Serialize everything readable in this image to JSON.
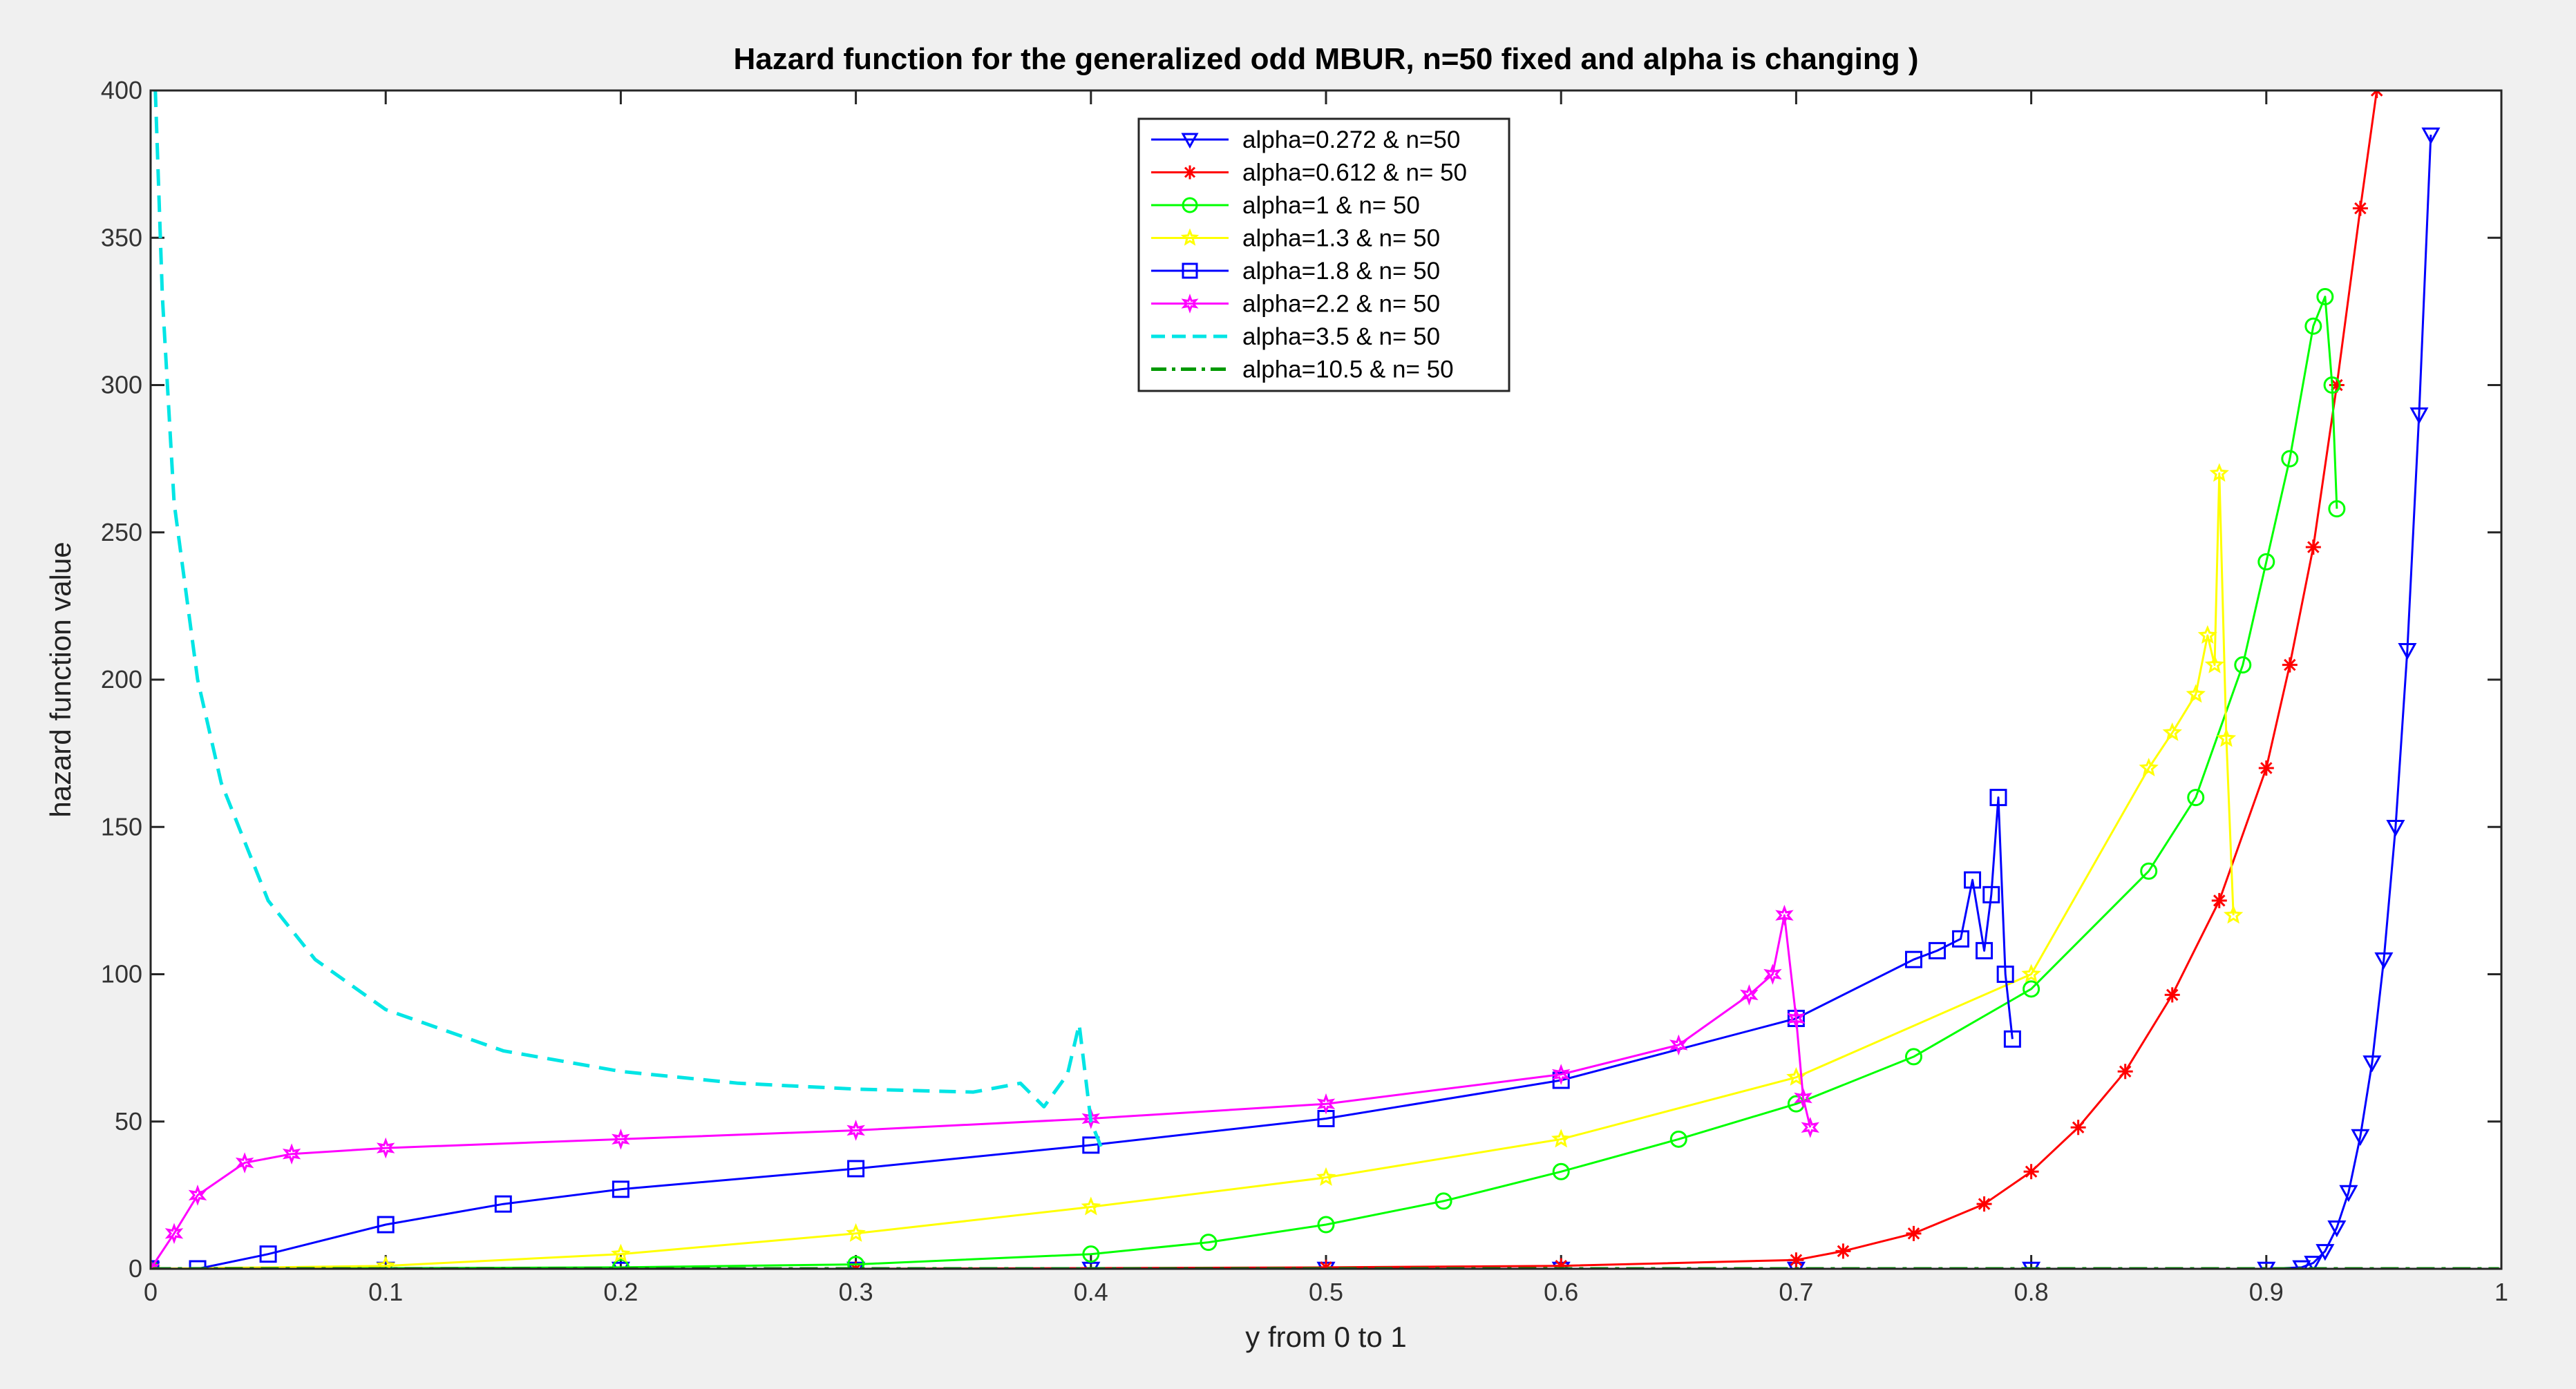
{
  "chart_data": {
    "type": "line",
    "title": "Hazard function for the generalized odd MBUR, n=50 fixed and alpha is changing )",
    "xlabel": "y from 0 to 1",
    "ylabel": "hazard function value",
    "xlim": [
      0,
      1
    ],
    "ylim": [
      0,
      400
    ],
    "xticks": [
      0,
      0.1,
      0.2,
      0.3,
      0.4,
      0.5,
      0.6,
      0.7,
      0.8,
      0.9,
      1
    ],
    "yticks": [
      0,
      50,
      100,
      150,
      200,
      250,
      300,
      350,
      400
    ],
    "grid": false,
    "legend_position": "top-center",
    "series": [
      {
        "name": "alpha=0.272 & n=50",
        "color": "#0000ff",
        "style": "solid",
        "marker": "triangle-down",
        "x": [
          0,
          0.1,
          0.2,
          0.3,
          0.4,
          0.5,
          0.6,
          0.7,
          0.8,
          0.9,
          0.915,
          0.92,
          0.925,
          0.93,
          0.935,
          0.94,
          0.945,
          0.95,
          0.955,
          0.96,
          0.965,
          0.97
        ],
        "y": [
          0,
          0,
          0,
          0,
          0,
          0,
          0,
          0,
          0,
          0,
          0.5,
          2,
          6,
          14,
          26,
          45,
          70,
          105,
          150,
          210,
          290,
          385
        ]
      },
      {
        "name": "alpha=0.612 & n= 50",
        "color": "#ff0000",
        "style": "solid",
        "marker": "asterisk",
        "x": [
          0,
          0.3,
          0.5,
          0.6,
          0.7,
          0.72,
          0.75,
          0.78,
          0.8,
          0.82,
          0.84,
          0.86,
          0.88,
          0.9,
          0.91,
          0.92,
          0.93,
          0.94,
          0.947
        ],
        "y": [
          0,
          0,
          0.5,
          1,
          3,
          6,
          12,
          22,
          33,
          48,
          67,
          93,
          125,
          170,
          205,
          245,
          300,
          360,
          400
        ]
      },
      {
        "name": "alpha=1 & n= 50",
        "color": "#00ff00",
        "style": "solid",
        "marker": "circle",
        "x": [
          0,
          0.2,
          0.3,
          0.4,
          0.45,
          0.5,
          0.55,
          0.6,
          0.65,
          0.7,
          0.75,
          0.8,
          0.85,
          0.87,
          0.89,
          0.9,
          0.91,
          0.92,
          0.925,
          0.928,
          0.93
        ],
        "y": [
          0,
          0.5,
          1.5,
          5,
          9,
          15,
          23,
          33,
          44,
          56,
          72,
          95,
          135,
          160,
          205,
          240,
          275,
          320,
          330,
          300,
          258
        ]
      },
      {
        "name": "alpha=1.3 & n= 50",
        "color": "#ffff00",
        "style": "solid",
        "marker": "pentagram",
        "x": [
          0,
          0.1,
          0.2,
          0.3,
          0.4,
          0.5,
          0.6,
          0.7,
          0.8,
          0.85,
          0.86,
          0.87,
          0.875,
          0.878,
          0.88,
          0.883,
          0.886
        ],
        "y": [
          0,
          1,
          5,
          12,
          21,
          31,
          44,
          65,
          100,
          170,
          182,
          195,
          215,
          205,
          270,
          180,
          120
        ]
      },
      {
        "name": "alpha=1.8 & n= 50",
        "color": "#0000ff",
        "style": "solid",
        "marker": "square",
        "x": [
          0,
          0.02,
          0.05,
          0.1,
          0.15,
          0.2,
          0.3,
          0.4,
          0.5,
          0.6,
          0.7,
          0.75,
          0.76,
          0.77,
          0.775,
          0.78,
          0.783,
          0.786,
          0.789,
          0.792
        ],
        "y": [
          0,
          0,
          5,
          15,
          22,
          27,
          34,
          42,
          51,
          64,
          85,
          105,
          108,
          112,
          132,
          108,
          127,
          160,
          100,
          78
        ]
      },
      {
        "name": "alpha=2.2 & n= 50",
        "color": "#ff00ff",
        "style": "solid",
        "marker": "hexagram",
        "x": [
          0,
          0.01,
          0.02,
          0.04,
          0.06,
          0.1,
          0.2,
          0.3,
          0.4,
          0.5,
          0.6,
          0.65,
          0.68,
          0.69,
          0.695,
          0.7,
          0.703,
          0.706
        ],
        "y": [
          0,
          12,
          25,
          36,
          39,
          41,
          44,
          47,
          51,
          56,
          66,
          76,
          93,
          100,
          120,
          85,
          58,
          48
        ]
      },
      {
        "name": "alpha=3.5 & n= 50",
        "color": "#00e5e5",
        "style": "dashed",
        "marker": "none",
        "x": [
          0.002,
          0.005,
          0.01,
          0.02,
          0.03,
          0.05,
          0.07,
          0.1,
          0.15,
          0.2,
          0.25,
          0.3,
          0.35,
          0.37,
          0.38,
          0.39,
          0.395,
          0.4,
          0.405
        ],
        "y": [
          400,
          330,
          260,
          200,
          165,
          125,
          105,
          88,
          74,
          67,
          63,
          61,
          60,
          63,
          55,
          66,
          83,
          50,
          40
        ]
      },
      {
        "name": "alpha=10.5 & n= 50",
        "color": "#009900",
        "style": "dashdot",
        "marker": "none",
        "x": [
          0.001,
          0.999
        ],
        "y": [
          0,
          0
        ]
      }
    ]
  }
}
